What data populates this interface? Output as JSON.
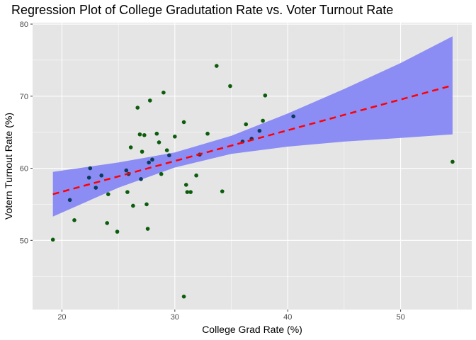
{
  "colors": {
    "panel": "#e5e5e5",
    "grid_major": "#ffffff",
    "point": "#0b5c0b",
    "point_alt": "#0a3a5c",
    "ribbon": "#8c8cf5",
    "line": "#ff0000"
  },
  "chart_data": {
    "type": "scatter",
    "title": "Regression Plot of College Gradutation Rate vs. Voter Turnout Rate",
    "xlabel": "College Grad Rate (%)",
    "ylabel": "Votern Turnout Rate (%)",
    "xlim": [
      17.4,
      56.3
    ],
    "ylim": [
      40.4,
      80.2
    ],
    "x_ticks": [
      20,
      30,
      40,
      50
    ],
    "y_ticks": [
      50,
      60,
      70,
      80
    ],
    "grid": true,
    "points": [
      {
        "x": 19.2,
        "y": 50.1
      },
      {
        "x": 20.7,
        "y": 55.6
      },
      {
        "x": 21.1,
        "y": 52.8
      },
      {
        "x": 22.4,
        "y": 58.7
      },
      {
        "x": 22.5,
        "y": 60.0
      },
      {
        "x": 23.0,
        "y": 57.3
      },
      {
        "x": 23.5,
        "y": 59.0
      },
      {
        "x": 24.0,
        "y": 52.4
      },
      {
        "x": 24.1,
        "y": 56.4
      },
      {
        "x": 24.9,
        "y": 51.2
      },
      {
        "x": 25.7,
        "y": 59.7
      },
      {
        "x": 25.8,
        "y": 56.7
      },
      {
        "x": 25.9,
        "y": 59.2
      },
      {
        "x": 26.1,
        "y": 62.9
      },
      {
        "x": 26.3,
        "y": 54.8
      },
      {
        "x": 26.7,
        "y": 68.4
      },
      {
        "x": 26.9,
        "y": 64.7
      },
      {
        "x": 27.0,
        "y": 58.5
      },
      {
        "x": 27.1,
        "y": 62.3
      },
      {
        "x": 27.3,
        "y": 64.6
      },
      {
        "x": 27.5,
        "y": 55.0
      },
      {
        "x": 27.6,
        "y": 51.6
      },
      {
        "x": 27.7,
        "y": 60.8
      },
      {
        "x": 27.8,
        "y": 69.4
      },
      {
        "x": 28.0,
        "y": 61.2
      },
      {
        "x": 28.4,
        "y": 64.8
      },
      {
        "x": 28.6,
        "y": 63.6
      },
      {
        "x": 28.8,
        "y": 59.2
      },
      {
        "x": 29.0,
        "y": 70.5
      },
      {
        "x": 29.3,
        "y": 62.5
      },
      {
        "x": 29.5,
        "y": 61.8
      },
      {
        "x": 30.0,
        "y": 64.4
      },
      {
        "x": 30.8,
        "y": 66.4
      },
      {
        "x": 30.8,
        "y": 42.2
      },
      {
        "x": 31.0,
        "y": 57.7
      },
      {
        "x": 31.1,
        "y": 56.7
      },
      {
        "x": 31.4,
        "y": 56.7
      },
      {
        "x": 31.9,
        "y": 59.0
      },
      {
        "x": 32.2,
        "y": 61.9
      },
      {
        "x": 32.9,
        "y": 64.8
      },
      {
        "x": 33.7,
        "y": 74.2
      },
      {
        "x": 34.2,
        "y": 56.8
      },
      {
        "x": 34.9,
        "y": 71.4
      },
      {
        "x": 36.0,
        "y": 63.7
      },
      {
        "x": 36.3,
        "y": 66.1
      },
      {
        "x": 36.8,
        "y": 64.1
      },
      {
        "x": 37.5,
        "y": 65.2
      },
      {
        "x": 37.8,
        "y": 66.6
      },
      {
        "x": 38.0,
        "y": 70.1
      },
      {
        "x": 40.5,
        "y": 67.2
      },
      {
        "x": 54.6,
        "y": 60.9
      }
    ],
    "regression": {
      "x": [
        19.2,
        54.6
      ],
      "y": [
        56.4,
        71.5
      ],
      "style": "dashed"
    },
    "confidence_band": {
      "x": [
        19.2,
        25,
        30,
        35,
        40,
        45,
        50,
        54.6
      ],
      "lower": [
        53.3,
        57.3,
        60.1,
        62.0,
        63.0,
        63.7,
        64.2,
        64.7
      ],
      "upper": [
        59.5,
        60.8,
        62.2,
        64.5,
        67.6,
        71.0,
        74.6,
        78.3
      ]
    }
  }
}
